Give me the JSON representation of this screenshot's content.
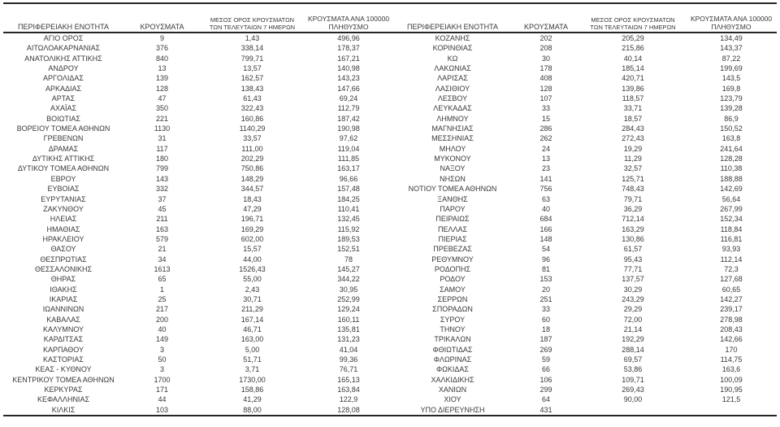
{
  "colors": {
    "text": "#383838",
    "border": "#262626",
    "background": "#ffffff"
  },
  "table": {
    "headers": {
      "region": "ΠΕΡΙΦΕΡΕΙΑΚΗ ΕΝΟΤΗΤΑ",
      "cases": "ΚΡΟΥΣΜΑΤΑ",
      "avg7_line1": "ΜΕΣΟΣ ΟΡΟΣ ΚΡΟΥΣΜΑΤΩΝ",
      "avg7_line2": "ΤΩΝ ΤΕΛΕΥΤΑΙΩΝ 7 ΗΜΕΡΩΝ",
      "per100k_line1": "ΚΡΟΥΣΜΑΤΑ ΑΝΑ 100000",
      "per100k_line2": "ΠΛΗΘΥΣΜΟ"
    },
    "left_rows": [
      {
        "region": "ΑΓΙΟ ΟΡΟΣ",
        "cases": "9",
        "avg7": "1,43",
        "per100k": "496,96"
      },
      {
        "region": "ΑΙΤΩΛΟΑΚΑΡΝΑΝΙΑΣ",
        "cases": "376",
        "avg7": "338,14",
        "per100k": "178,37"
      },
      {
        "region": "ΑΝΑΤΟΛΙΚΗΣ ΑΤΤΙΚΗΣ",
        "cases": "840",
        "avg7": "799,71",
        "per100k": "167,21"
      },
      {
        "region": "ΑΝΔΡΟΥ",
        "cases": "13",
        "avg7": "13,57",
        "per100k": "140,98"
      },
      {
        "region": "ΑΡΓΟΛΙΔΑΣ",
        "cases": "139",
        "avg7": "162,57",
        "per100k": "143,23"
      },
      {
        "region": "ΑΡΚΑΔΙΑΣ",
        "cases": "128",
        "avg7": "138,43",
        "per100k": "147,66"
      },
      {
        "region": "ΑΡΤΑΣ",
        "cases": "47",
        "avg7": "61,43",
        "per100k": "69,24"
      },
      {
        "region": "ΑΧΑΪΑΣ",
        "cases": "350",
        "avg7": "322,43",
        "per100k": "112,79"
      },
      {
        "region": "ΒΟΙΩΤΙΑΣ",
        "cases": "221",
        "avg7": "160,86",
        "per100k": "187,42"
      },
      {
        "region": "ΒΟΡΕΙΟΥ ΤΟΜΕΑ ΑΘΗΝΩΝ",
        "cases": "1130",
        "avg7": "1140,29",
        "per100k": "190,98"
      },
      {
        "region": "ΓΡΕΒΕΝΩΝ",
        "cases": "31",
        "avg7": "33,57",
        "per100k": "97,62"
      },
      {
        "region": "ΔΡΑΜΑΣ",
        "cases": "117",
        "avg7": "111,00",
        "per100k": "119,04"
      },
      {
        "region": "ΔΥΤΙΚΗΣ ΑΤΤΙΚΗΣ",
        "cases": "180",
        "avg7": "202,29",
        "per100k": "111,85"
      },
      {
        "region": "ΔΥΤΙΚΟΥ ΤΟΜΕΑ ΑΘΗΝΩΝ",
        "cases": "799",
        "avg7": "750,86",
        "per100k": "163,17"
      },
      {
        "region": "ΕΒΡΟΥ",
        "cases": "143",
        "avg7": "148,29",
        "per100k": "96,66"
      },
      {
        "region": "ΕΥΒΟΙΑΣ",
        "cases": "332",
        "avg7": "344,57",
        "per100k": "157,48"
      },
      {
        "region": "ΕΥΡΥΤΑΝΙΑΣ",
        "cases": "37",
        "avg7": "18,43",
        "per100k": "184,25"
      },
      {
        "region": "ΖΑΚΥΝΘΟΥ",
        "cases": "45",
        "avg7": "47,29",
        "per100k": "110,41"
      },
      {
        "region": "ΗΛΕΙΑΣ",
        "cases": "211",
        "avg7": "196,71",
        "per100k": "132,45"
      },
      {
        "region": "ΗΜΑΘΙΑΣ",
        "cases": "163",
        "avg7": "169,29",
        "per100k": "115,92"
      },
      {
        "region": "ΗΡΑΚΛΕΙΟΥ",
        "cases": "579",
        "avg7": "602,00",
        "per100k": "189,53"
      },
      {
        "region": "ΘΑΣΟΥ",
        "cases": "21",
        "avg7": "15,57",
        "per100k": "152,51"
      },
      {
        "region": "ΘΕΣΠΡΩΤΙΑΣ",
        "cases": "34",
        "avg7": "44,00",
        "per100k": "78"
      },
      {
        "region": "ΘΕΣΣΑΛΟΝΙΚΗΣ",
        "cases": "1613",
        "avg7": "1526,43",
        "per100k": "145,27"
      },
      {
        "region": "ΘΗΡΑΣ",
        "cases": "65",
        "avg7": "55,00",
        "per100k": "344,22"
      },
      {
        "region": "ΙΘΑΚΗΣ",
        "cases": "1",
        "avg7": "2,43",
        "per100k": "30,95"
      },
      {
        "region": "ΙΚΑΡΙΑΣ",
        "cases": "25",
        "avg7": "30,71",
        "per100k": "252,99"
      },
      {
        "region": "ΙΩΑΝΝΙΝΩΝ",
        "cases": "217",
        "avg7": "211,29",
        "per100k": "129,24"
      },
      {
        "region": "ΚΑΒΑΛΑΣ",
        "cases": "200",
        "avg7": "167,14",
        "per100k": "160,11"
      },
      {
        "region": "ΚΑΛΥΜΝΟΥ",
        "cases": "40",
        "avg7": "46,71",
        "per100k": "135,81"
      },
      {
        "region": "ΚΑΡΔΙΤΣΑΣ",
        "cases": "149",
        "avg7": "163,00",
        "per100k": "131,23"
      },
      {
        "region": "ΚΑΡΠΑΘΟΥ",
        "cases": "3",
        "avg7": "5,00",
        "per100k": "41,04"
      },
      {
        "region": "ΚΑΣΤΟΡΙΑΣ",
        "cases": "50",
        "avg7": "51,71",
        "per100k": "99,36"
      },
      {
        "region": "ΚΕΑΣ - ΚΥΘΝΟΥ",
        "cases": "3",
        "avg7": "3,71",
        "per100k": "76,71"
      },
      {
        "region": "ΚΕΝΤΡΙΚΟΥ ΤΟΜΕΑ ΑΘΗΝΩΝ",
        "cases": "1700",
        "avg7": "1730,00",
        "per100k": "165,13"
      },
      {
        "region": "ΚΕΡΚΥΡΑΣ",
        "cases": "171",
        "avg7": "158,86",
        "per100k": "163,84"
      },
      {
        "region": "ΚΕΦΑΛΛΗΝΙΑΣ",
        "cases": "44",
        "avg7": "41,29",
        "per100k": "122,9"
      },
      {
        "region": "ΚΙΛΚΙΣ",
        "cases": "103",
        "avg7": "88,00",
        "per100k": "128,08"
      }
    ],
    "right_rows": [
      {
        "region": "ΚΟΖΑΝΗΣ",
        "cases": "202",
        "avg7": "205,29",
        "per100k": "134,49"
      },
      {
        "region": "ΚΟΡΙΝΘΙΑΣ",
        "cases": "208",
        "avg7": "215,86",
        "per100k": "143,37"
      },
      {
        "region": "ΚΩ",
        "cases": "30",
        "avg7": "40,14",
        "per100k": "87,22"
      },
      {
        "region": "ΛΑΚΩΝΙΑΣ",
        "cases": "178",
        "avg7": "185,14",
        "per100k": "199,69"
      },
      {
        "region": "ΛΑΡΙΣΑΣ",
        "cases": "408",
        "avg7": "420,71",
        "per100k": "143,5"
      },
      {
        "region": "ΛΑΣΙΘΙΟΥ",
        "cases": "128",
        "avg7": "139,86",
        "per100k": "169,8"
      },
      {
        "region": "ΛΕΣΒΟΥ",
        "cases": "107",
        "avg7": "118,57",
        "per100k": "123,79"
      },
      {
        "region": "ΛΕΥΚΑΔΑΣ",
        "cases": "33",
        "avg7": "33,71",
        "per100k": "139,28"
      },
      {
        "region": "ΛΗΜΝΟΥ",
        "cases": "15",
        "avg7": "18,57",
        "per100k": "86,9"
      },
      {
        "region": "ΜΑΓΝΗΣΙΑΣ",
        "cases": "286",
        "avg7": "284,43",
        "per100k": "150,52"
      },
      {
        "region": "ΜΕΣΣΗΝΙΑΣ",
        "cases": "262",
        "avg7": "272,43",
        "per100k": "163,8"
      },
      {
        "region": "ΜΗΛΟΥ",
        "cases": "24",
        "avg7": "19,29",
        "per100k": "241,64"
      },
      {
        "region": "ΜΥΚΟΝΟΥ",
        "cases": "13",
        "avg7": "11,29",
        "per100k": "128,28"
      },
      {
        "region": "ΝΑΞΟΥ",
        "cases": "23",
        "avg7": "32,57",
        "per100k": "110,38"
      },
      {
        "region": "ΝΗΣΩΝ",
        "cases": "141",
        "avg7": "125,71",
        "per100k": "188,88"
      },
      {
        "region": "ΝΟΤΙΟΥ ΤΟΜΕΑ ΑΘΗΝΩΝ",
        "cases": "756",
        "avg7": "748,43",
        "per100k": "142,69"
      },
      {
        "region": "ΞΑΝΘΗΣ",
        "cases": "63",
        "avg7": "79,71",
        "per100k": "56,64"
      },
      {
        "region": "ΠΑΡΟΥ",
        "cases": "40",
        "avg7": "36,29",
        "per100k": "267,99"
      },
      {
        "region": "ΠΕΙΡΑΙΩΣ",
        "cases": "684",
        "avg7": "712,14",
        "per100k": "152,34"
      },
      {
        "region": "ΠΕΛΛΑΣ",
        "cases": "166",
        "avg7": "163,29",
        "per100k": "118,84"
      },
      {
        "region": "ΠΙΕΡΙΑΣ",
        "cases": "148",
        "avg7": "130,86",
        "per100k": "116,81"
      },
      {
        "region": "ΠΡΕΒΕΖΑΣ",
        "cases": "54",
        "avg7": "61,57",
        "per100k": "93,93"
      },
      {
        "region": "ΡΕΘΥΜΝΟΥ",
        "cases": "96",
        "avg7": "95,43",
        "per100k": "112,14"
      },
      {
        "region": "ΡΟΔΟΠΗΣ",
        "cases": "81",
        "avg7": "77,71",
        "per100k": "72,3"
      },
      {
        "region": "ΡΟΔΟΥ",
        "cases": "153",
        "avg7": "137,57",
        "per100k": "127,68"
      },
      {
        "region": "ΣΑΜΟΥ",
        "cases": "20",
        "avg7": "30,29",
        "per100k": "60,65"
      },
      {
        "region": "ΣΕΡΡΩΝ",
        "cases": "251",
        "avg7": "243,29",
        "per100k": "142,27"
      },
      {
        "region": "ΣΠΟΡΑΔΩΝ",
        "cases": "33",
        "avg7": "29,29",
        "per100k": "239,17"
      },
      {
        "region": "ΣΥΡΟΥ",
        "cases": "60",
        "avg7": "72,00",
        "per100k": "278,98"
      },
      {
        "region": "ΤΗΝΟΥ",
        "cases": "18",
        "avg7": "21,14",
        "per100k": "208,43"
      },
      {
        "region": "ΤΡΙΚΑΛΩΝ",
        "cases": "187",
        "avg7": "192,29",
        "per100k": "142,66"
      },
      {
        "region": "ΦΘΙΩΤΙΔΑΣ",
        "cases": "269",
        "avg7": "288,14",
        "per100k": "170"
      },
      {
        "region": "ΦΛΩΡΙΝΑΣ",
        "cases": "59",
        "avg7": "69,57",
        "per100k": "114,75"
      },
      {
        "region": "ΦΩΚΙΔΑΣ",
        "cases": "66",
        "avg7": "53,86",
        "per100k": "163,6"
      },
      {
        "region": "ΧΑΛΚΙΔΙΚΗΣ",
        "cases": "106",
        "avg7": "109,71",
        "per100k": "100,09"
      },
      {
        "region": "ΧΑΝΙΩΝ",
        "cases": "299",
        "avg7": "269,43",
        "per100k": "190,95"
      },
      {
        "region": "ΧΙΟΥ",
        "cases": "64",
        "avg7": "90,00",
        "per100k": "121,5"
      },
      {
        "region": "ΥΠΟ ΔΙΕΡΕΥΝΗΣΗ",
        "cases": "431",
        "avg7": "",
        "per100k": ""
      }
    ]
  }
}
